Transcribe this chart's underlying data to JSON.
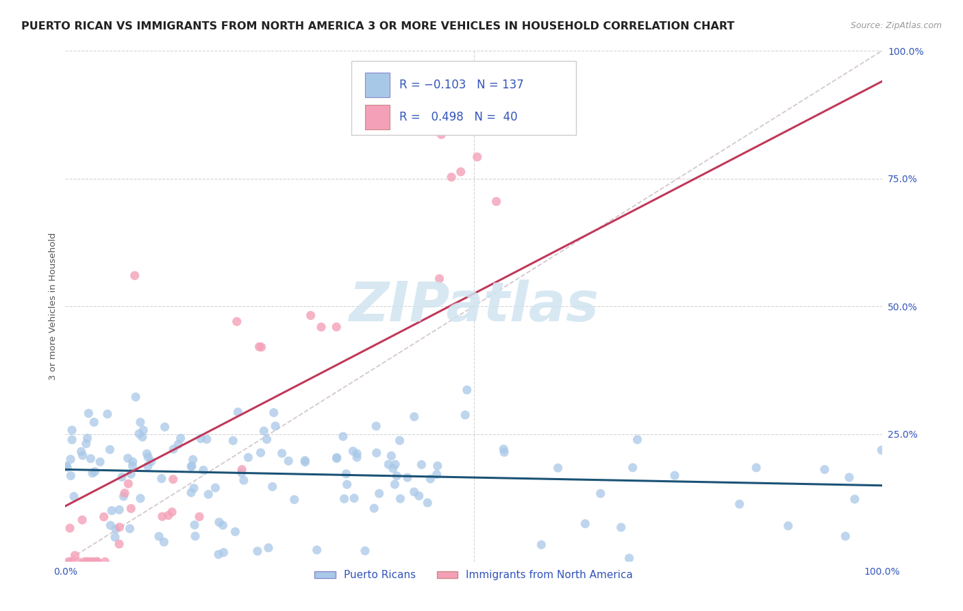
{
  "title": "PUERTO RICAN VS IMMIGRANTS FROM NORTH AMERICA 3 OR MORE VEHICLES IN HOUSEHOLD CORRELATION CHART",
  "source": "Source: ZipAtlas.com",
  "ylabel": "3 or more Vehicles in Household",
  "legend_label1": "Puerto Ricans",
  "legend_label2": "Immigrants from North America",
  "series1_R": -0.103,
  "series1_N": 137,
  "series1_color": "#a8c8e8",
  "series1_line_color": "#1a5276",
  "series2_R": 0.498,
  "series2_N": 40,
  "series2_color": "#f4a0b8",
  "series2_line_color": "#c0385a",
  "diag_color": "#d4a0b0",
  "grid_color": "#c8c8c8",
  "bg_color": "#ffffff",
  "title_color": "#222222",
  "axis_color": "#3355bb",
  "watermark_color": "#d0e4f0",
  "title_fontsize": 11.5,
  "tick_fontsize": 10,
  "legend_fontsize": 12
}
